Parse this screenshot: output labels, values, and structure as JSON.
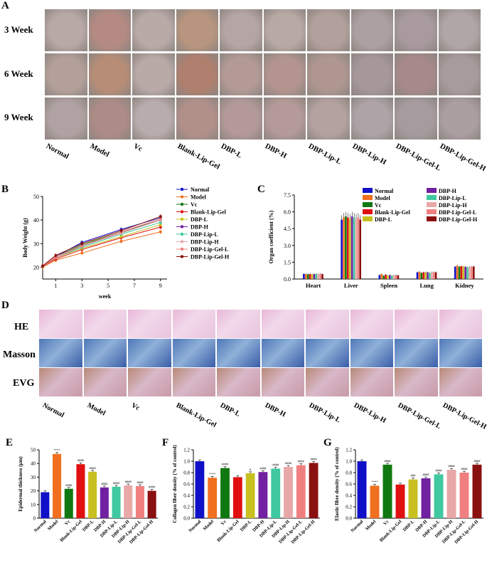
{
  "panels": {
    "A": "A",
    "B": "B",
    "C": "C",
    "D": "D",
    "E": "E",
    "F": "F",
    "G": "G"
  },
  "groups": [
    "Normal",
    "Model",
    "Vc",
    "Blank-Lip-Gel",
    "DBP-L",
    "DBP-H",
    "DBP-Lip-L",
    "DBP-Lip-H",
    "DBP-Lip-Gel-L",
    "DBP-Lip-Gel-H"
  ],
  "panelA": {
    "rows": [
      "3 Week",
      "6 Week",
      "9 Week"
    ]
  },
  "panelD": {
    "rows": [
      "HE",
      "Masson",
      "EVG"
    ]
  },
  "colors": {
    "Normal": "#1010c8",
    "Model": "#f07020",
    "Vc": "#107810",
    "Blank-Lip-Gel": "#e01010",
    "DBP-L": "#c8c020",
    "DBP-H": "#7020a0",
    "DBP-Lip-L": "#40c8a0",
    "DBP-Lip-H": "#e8a8a8",
    "DBP-Lip-Gel-L": "#f08080",
    "DBP-Lip-Gel-H": "#8b1010"
  },
  "chart_data": [
    {
      "panel": "B",
      "type": "line",
      "xlabel": "week",
      "ylabel": "Body Weight (g)",
      "x": [
        0,
        1,
        3,
        6,
        9
      ],
      "xticks": [
        1,
        3,
        5,
        7,
        9
      ],
      "ylim": [
        15,
        50
      ],
      "yticks": [
        20,
        30,
        40,
        50
      ],
      "legend_position": "right",
      "series": [
        {
          "name": "Normal",
          "values": [
            20.5,
            24.5,
            30.5,
            36.0,
            41.0
          ]
        },
        {
          "name": "Model",
          "values": [
            20.0,
            23.0,
            26.0,
            31.0,
            35.0
          ]
        },
        {
          "name": "Vc",
          "values": [
            20.5,
            24.5,
            29.5,
            35.0,
            40.0
          ]
        },
        {
          "name": "Blank-Lip-Gel",
          "values": [
            20.3,
            23.5,
            27.5,
            32.5,
            37.0
          ]
        },
        {
          "name": "DBP-L",
          "values": [
            20.4,
            24.0,
            28.0,
            33.0,
            38.0
          ]
        },
        {
          "name": "DBP-H",
          "values": [
            20.5,
            24.5,
            29.0,
            34.5,
            40.0
          ]
        },
        {
          "name": "DBP-Lip-L",
          "values": [
            20.4,
            24.0,
            28.5,
            34.0,
            39.0
          ]
        },
        {
          "name": "DBP-Lip-H",
          "values": [
            20.5,
            24.5,
            29.0,
            34.5,
            40.0
          ]
        },
        {
          "name": "DBP-Lip-Gel-L",
          "values": [
            20.5,
            24.0,
            29.0,
            35.0,
            40.5
          ]
        },
        {
          "name": "DBP-Lip-Gel-H",
          "values": [
            20.6,
            25.0,
            30.0,
            35.5,
            41.5
          ]
        }
      ]
    },
    {
      "panel": "C",
      "type": "bar",
      "ylabel": "Organ coefficient (%)",
      "categories": [
        "Heart",
        "Liver",
        "Spleen",
        "Lung",
        "Kidney"
      ],
      "ylim": [
        0,
        7.5
      ],
      "yticks": [
        0.0,
        1.5,
        3.0,
        4.5,
        6.0,
        7.5
      ],
      "legend_position": "top-right",
      "series": [
        {
          "name": "Normal",
          "values": [
            0.45,
            5.3,
            0.35,
            0.6,
            1.1
          ]
        },
        {
          "name": "Model",
          "values": [
            0.45,
            5.5,
            0.45,
            0.65,
            1.2
          ]
        },
        {
          "name": "Vc",
          "values": [
            0.42,
            5.6,
            0.3,
            0.55,
            1.1
          ]
        },
        {
          "name": "Blank-Lip-Gel",
          "values": [
            0.45,
            5.5,
            0.4,
            0.6,
            1.15
          ]
        },
        {
          "name": "DBP-L",
          "values": [
            0.42,
            5.4,
            0.3,
            0.6,
            1.1
          ]
        },
        {
          "name": "DBP-H",
          "values": [
            0.44,
            5.6,
            0.35,
            0.6,
            1.1
          ]
        },
        {
          "name": "DBP-Lip-L",
          "values": [
            0.45,
            5.5,
            0.3,
            0.55,
            1.05
          ]
        },
        {
          "name": "DBP-Lip-H",
          "values": [
            0.43,
            5.4,
            0.32,
            0.6,
            1.1
          ]
        },
        {
          "name": "DBP-Lip-Gel-L",
          "values": [
            0.45,
            5.5,
            0.35,
            0.62,
            1.1
          ]
        },
        {
          "name": "DBP-Lip-Gel-H",
          "values": [
            0.44,
            5.3,
            0.33,
            0.6,
            1.12
          ]
        }
      ]
    },
    {
      "panel": "E",
      "type": "bar",
      "ylabel": "Epidermal thickness (μm)",
      "categories": [
        "Normal",
        "Model",
        "Vc",
        "Blank-Lip-Gel",
        "DBP-L",
        "DBP-H",
        "DBP-Lip-L",
        "DBP-Lip-H",
        "DBP-Lip-Gel-L",
        "DBP-Lip-Gel-H"
      ],
      "ylim": [
        0,
        50
      ],
      "yticks": [
        0,
        10,
        20,
        30,
        40,
        50
      ],
      "values": [
        19,
        47,
        21.5,
        39.5,
        34,
        22.5,
        23,
        24,
        23.5,
        20
      ],
      "annotations": [
        "",
        "****",
        "####",
        "####",
        "####",
        "####",
        "####",
        "####",
        "####",
        "####"
      ]
    },
    {
      "panel": "F",
      "type": "bar",
      "ylabel": "Collagen fiber density (% of control)",
      "categories": [
        "Normal",
        "Model",
        "Vc",
        "Blank-Lip-Gel",
        "DBP-L",
        "DBP-H",
        "DBP-Lip-L",
        "DBP-Lip-H",
        "DBP-Lip-Gel-L",
        "DBP-Lip-Gel-H"
      ],
      "ylim": [
        0,
        1.2
      ],
      "yticks": [
        0.0,
        0.2,
        0.4,
        0.6,
        0.8,
        1.0,
        1.2
      ],
      "values": [
        1.0,
        0.71,
        0.88,
        0.72,
        0.79,
        0.81,
        0.87,
        0.9,
        0.93,
        0.97
      ],
      "annotations": [
        "",
        "****",
        "####",
        "",
        "#",
        "####",
        "####",
        "####",
        "####",
        "####"
      ]
    },
    {
      "panel": "G",
      "type": "bar",
      "ylabel": "Elastic fibre density (% of control)",
      "categories": [
        "Normal",
        "Model",
        "Vc",
        "Blank-Lip-Gel",
        "DBP-L",
        "DBP-H",
        "DBP-Lip-L",
        "DBP-Lip-H",
        "DBP-Lip-Gel-L",
        "DBP-Lip-Gel-H"
      ],
      "ylim": [
        0,
        1.2
      ],
      "yticks": [
        0.0,
        0.2,
        0.4,
        0.6,
        0.8,
        1.0,
        1.2
      ],
      "values": [
        1.0,
        0.57,
        0.94,
        0.59,
        0.68,
        0.7,
        0.77,
        0.85,
        0.8,
        0.94
      ],
      "annotations": [
        "",
        "****",
        "####",
        "",
        "###",
        "####",
        "####",
        "####",
        "####",
        "####"
      ]
    }
  ]
}
